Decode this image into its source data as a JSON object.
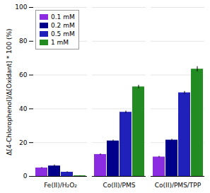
{
  "chart_data": {
    "type": "bar",
    "categories": [
      "Fe(II)/H₂O₂",
      "Co(II)/PMS",
      "Co(II)/PMS/TPP"
    ],
    "series": [
      {
        "name": "0.1 mM",
        "color": "#8B2BE2",
        "values": [
          5.0,
          13.0,
          11.5
        ],
        "errors": [
          0.3,
          0.4,
          0.4
        ]
      },
      {
        "name": "0.2 mM",
        "color": "#00008B",
        "values": [
          6.2,
          21.0,
          21.5
        ],
        "errors": [
          0.6,
          0.5,
          0.5
        ]
      },
      {
        "name": "0.5 mM",
        "color": "#2020BB",
        "values": [
          2.5,
          38.0,
          49.5
        ],
        "errors": [
          0.3,
          0.7,
          0.8
        ]
      },
      {
        "name": "1 mM",
        "color": "#228B22",
        "values": [
          0.4,
          53.0,
          63.5
        ],
        "errors": [
          0.1,
          1.0,
          1.5
        ]
      }
    ],
    "ylabel": "Δ[4-Chlorophenol]/Δ[Oxidant] * 100 (%)",
    "ylim": [
      0,
      100
    ],
    "yticks": [
      0,
      20,
      40,
      60,
      80,
      100
    ],
    "grid": true,
    "legend": "upper left"
  }
}
